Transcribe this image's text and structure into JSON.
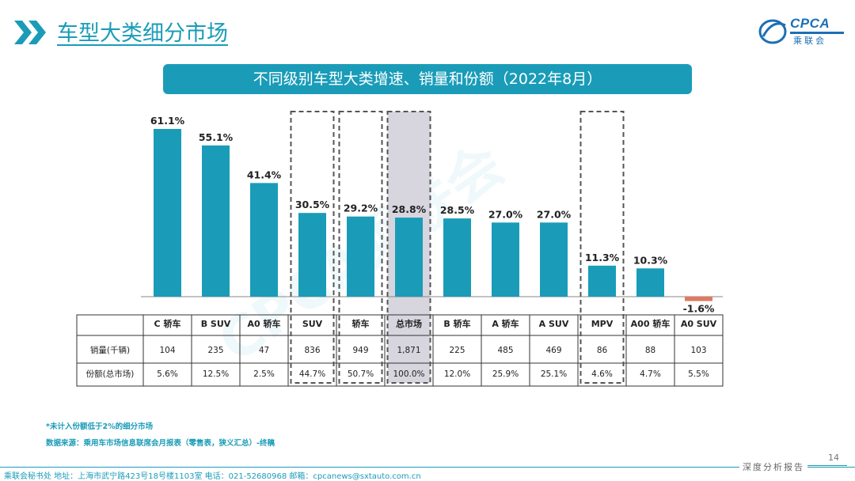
{
  "page": {
    "title": "车型大类细分市场",
    "logo_text": "CPCA",
    "logo_sub": "乘联会",
    "banner": "不同级别车型大类增速、销量和份额（2022年8月）",
    "note1": "*未计入份额低于2%的细分市场",
    "note2": "数据来源：乘用车市场信息联席会月报表（零售表，狭义汇总）-终稿",
    "footer": "乘联会秘书处   地址：上海市武宁路423号18号楼1103室  电话：021-52680968   邮箱：cpcanews@sxtauto.com.cn",
    "page_number": "14",
    "report_tag": "深度分析报告",
    "watermark": "CPCA乘联会"
  },
  "colors": {
    "accent": "#1a9cb8",
    "bar": "#1a9cb8",
    "negative": "#e07a5f",
    "highlight_fill": "#d7d5de",
    "dash": "#555555"
  },
  "chart_data": {
    "type": "bar",
    "title": "不同级别车型大类增速、销量和份额（2022年8月）",
    "categories": [
      "C 轿车",
      "B SUV",
      "A0 轿车",
      "SUV",
      "轿车",
      "总市场",
      "B 轿车",
      "A 轿车",
      "A SUV",
      "MPV",
      "A00 轿车",
      "A0 SUV"
    ],
    "series": [
      {
        "name": "增速",
        "values": [
          61.1,
          55.1,
          41.4,
          30.5,
          29.2,
          28.8,
          28.5,
          27.0,
          27.0,
          11.3,
          10.3,
          -1.6
        ],
        "labels": [
          "61.1%",
          "55.1%",
          "41.4%",
          "30.5%",
          "29.2%",
          "28.8%",
          "28.5%",
          "27.0%",
          "27.0%",
          "11.3%",
          "10.3%",
          "-1.6%"
        ]
      }
    ],
    "table": {
      "rows": [
        {
          "label": "销量(千辆)",
          "values": [
            "104",
            "235",
            "47",
            "836",
            "949",
            "1,871",
            "225",
            "485",
            "469",
            "86",
            "88",
            "103"
          ]
        },
        {
          "label": "份额(总市场)",
          "values": [
            "5.6%",
            "12.5%",
            "2.5%",
            "44.7%",
            "50.7%",
            "100.0%",
            "12.0%",
            "25.9%",
            "25.1%",
            "4.6%",
            "4.7%",
            "5.5%"
          ]
        }
      ]
    },
    "highlighted": [
      "SUV",
      "轿车",
      "总市场",
      "MPV"
    ],
    "shaded": [
      "总市场"
    ],
    "ylim": [
      -2,
      65
    ],
    "grid": false,
    "legend": "none"
  }
}
